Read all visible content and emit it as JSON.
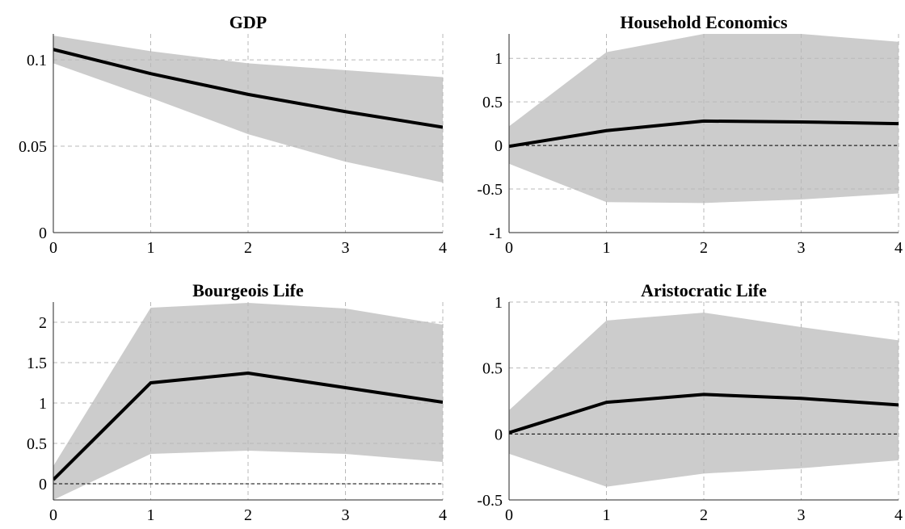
{
  "chart_data": [
    {
      "type": "area",
      "title": "GDP",
      "xlabel": "",
      "ylabel": "",
      "x": [
        0,
        1,
        2,
        3,
        4
      ],
      "xlim": [
        0,
        4
      ],
      "ylim": [
        0,
        0.115
      ],
      "xticks": [
        0,
        1,
        2,
        3,
        4
      ],
      "yticks": [
        0,
        0.05,
        0.1
      ],
      "ytick_labels": [
        "0",
        "0.05",
        "0.1"
      ],
      "grid": true,
      "zero_line": false,
      "series": [
        {
          "role": "lower_band",
          "values": [
            0.098,
            0.078,
            0.057,
            0.041,
            0.029
          ]
        },
        {
          "role": "upper_band",
          "values": [
            0.114,
            0.105,
            0.098,
            0.094,
            0.09
          ]
        },
        {
          "role": "response",
          "values": [
            0.106,
            0.092,
            0.08,
            0.07,
            0.061
          ]
        }
      ],
      "colors": {
        "band": "#cccccc",
        "line": "#000000"
      }
    },
    {
      "type": "area",
      "title": "Household Economics",
      "xlabel": "",
      "ylabel": "",
      "x": [
        0,
        1,
        2,
        3,
        4
      ],
      "xlim": [
        0,
        4
      ],
      "ylim": [
        -1,
        1.28
      ],
      "xticks": [
        0,
        1,
        2,
        3,
        4
      ],
      "yticks": [
        -1,
        -0.5,
        0,
        0.5,
        1
      ],
      "ytick_labels": [
        "-1",
        "-0.5",
        "0",
        "0.5",
        "1"
      ],
      "grid": true,
      "zero_line": true,
      "series": [
        {
          "role": "lower_band",
          "values": [
            -0.21,
            -0.65,
            -0.66,
            -0.62,
            -0.55
          ]
        },
        {
          "role": "upper_band",
          "values": [
            0.22,
            1.07,
            1.28,
            1.28,
            1.19
          ]
        },
        {
          "role": "response",
          "values": [
            -0.01,
            0.17,
            0.28,
            0.27,
            0.25
          ]
        }
      ],
      "colors": {
        "band": "#cccccc",
        "line": "#000000"
      }
    },
    {
      "type": "area",
      "title": "Bourgeois Life",
      "xlabel": "",
      "ylabel": "",
      "x": [
        0,
        1,
        2,
        3,
        4
      ],
      "xlim": [
        0,
        4
      ],
      "ylim": [
        -0.2,
        2.25
      ],
      "xticks": [
        0,
        1,
        2,
        3,
        4
      ],
      "yticks": [
        0,
        0.5,
        1,
        1.5,
        2
      ],
      "ytick_labels": [
        "0",
        "0.5",
        "1",
        "1.5",
        "2"
      ],
      "grid": true,
      "zero_line": true,
      "series": [
        {
          "role": "lower_band",
          "values": [
            -0.2,
            0.37,
            0.41,
            0.37,
            0.27
          ]
        },
        {
          "role": "upper_band",
          "values": [
            0.22,
            2.18,
            2.24,
            2.17,
            1.97
          ]
        },
        {
          "role": "response",
          "values": [
            0.05,
            1.25,
            1.37,
            1.19,
            1.01
          ]
        }
      ],
      "colors": {
        "band": "#cccccc",
        "line": "#000000"
      }
    },
    {
      "type": "area",
      "title": "Aristocratic Life",
      "xlabel": "",
      "ylabel": "",
      "x": [
        0,
        1,
        2,
        3,
        4
      ],
      "xlim": [
        0,
        4
      ],
      "ylim": [
        -0.5,
        1
      ],
      "xticks": [
        0,
        1,
        2,
        3,
        4
      ],
      "yticks": [
        -0.5,
        0,
        0.5,
        1
      ],
      "ytick_labels": [
        "-0.5",
        "0",
        "0.5",
        "1"
      ],
      "grid": true,
      "zero_line": true,
      "series": [
        {
          "role": "lower_band",
          "values": [
            -0.15,
            -0.4,
            -0.3,
            -0.26,
            -0.2
          ]
        },
        {
          "role": "upper_band",
          "values": [
            0.18,
            0.86,
            0.92,
            0.81,
            0.71
          ]
        },
        {
          "role": "response",
          "values": [
            0.01,
            0.24,
            0.3,
            0.27,
            0.22
          ]
        }
      ],
      "colors": {
        "band": "#cccccc",
        "line": "#000000"
      }
    }
  ]
}
